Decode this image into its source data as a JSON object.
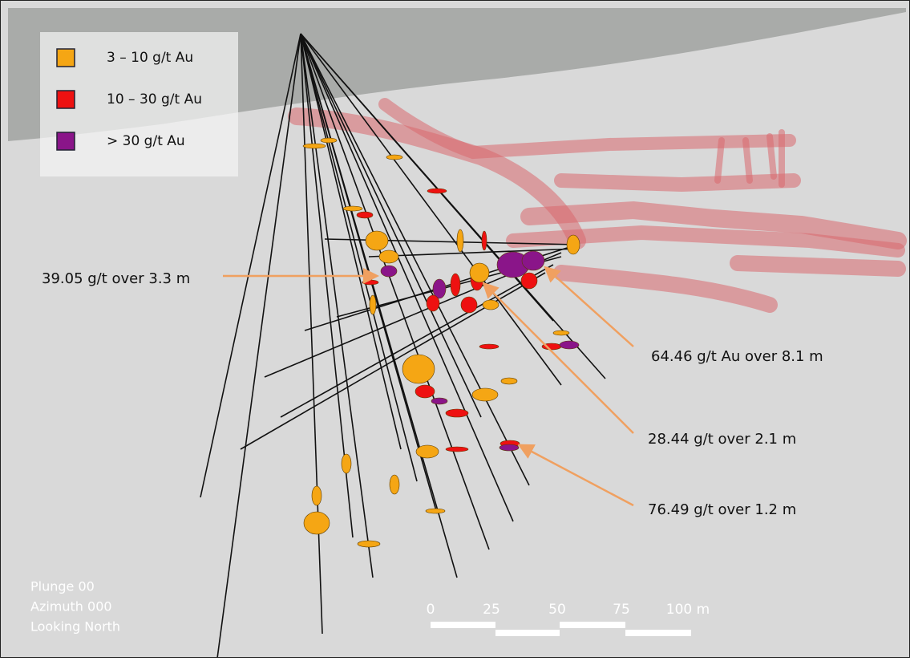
{
  "legend": {
    "items": [
      {
        "label": "3 – 10 g/t Au",
        "color": "#f5a614"
      },
      {
        "label": "10 – 30 g/t Au",
        "color": "#ee1111"
      },
      {
        "label": "> 30 g/t Au",
        "color": "#8a1589"
      }
    ]
  },
  "annotations": [
    "39.05 g/t over 3.3 m",
    "64.46 g/t Au over 8.1 m",
    "28.44 g/t over 2.1 m",
    "76.49 g/t over 1.2 m"
  ],
  "view": [
    "Plunge 00",
    "Azimuth 000",
    "Looking North"
  ],
  "scale_bar": {
    "labels": [
      "0",
      "25",
      "50",
      "75",
      "100 m"
    ]
  }
}
